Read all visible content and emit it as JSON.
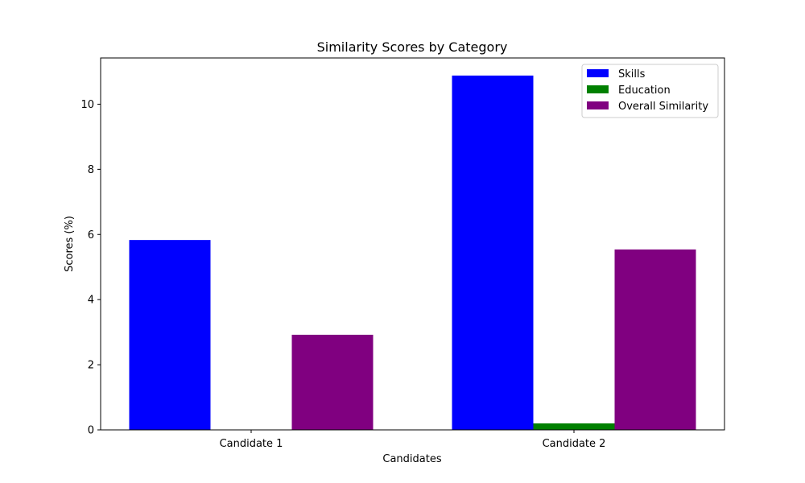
{
  "chart_data": {
    "type": "bar",
    "title": "Similarity Scores by Category",
    "xlabel": "Candidates",
    "ylabel": "Scores (%)",
    "categories": [
      "Candidate 1",
      "Candidate 2"
    ],
    "series": [
      {
        "name": "Skills",
        "color": "#0000ff",
        "values": [
          5.83,
          10.88
        ]
      },
      {
        "name": "Education",
        "color": "#008000",
        "values": [
          0.0,
          0.2
        ]
      },
      {
        "name": "Overall Similarity",
        "color": "#800080",
        "values": [
          2.92,
          5.54
        ]
      }
    ],
    "ylim": [
      0,
      11.42
    ],
    "yticks": [
      0,
      2,
      4,
      6,
      8,
      10
    ],
    "grid": false,
    "legend_position": "top-right"
  }
}
